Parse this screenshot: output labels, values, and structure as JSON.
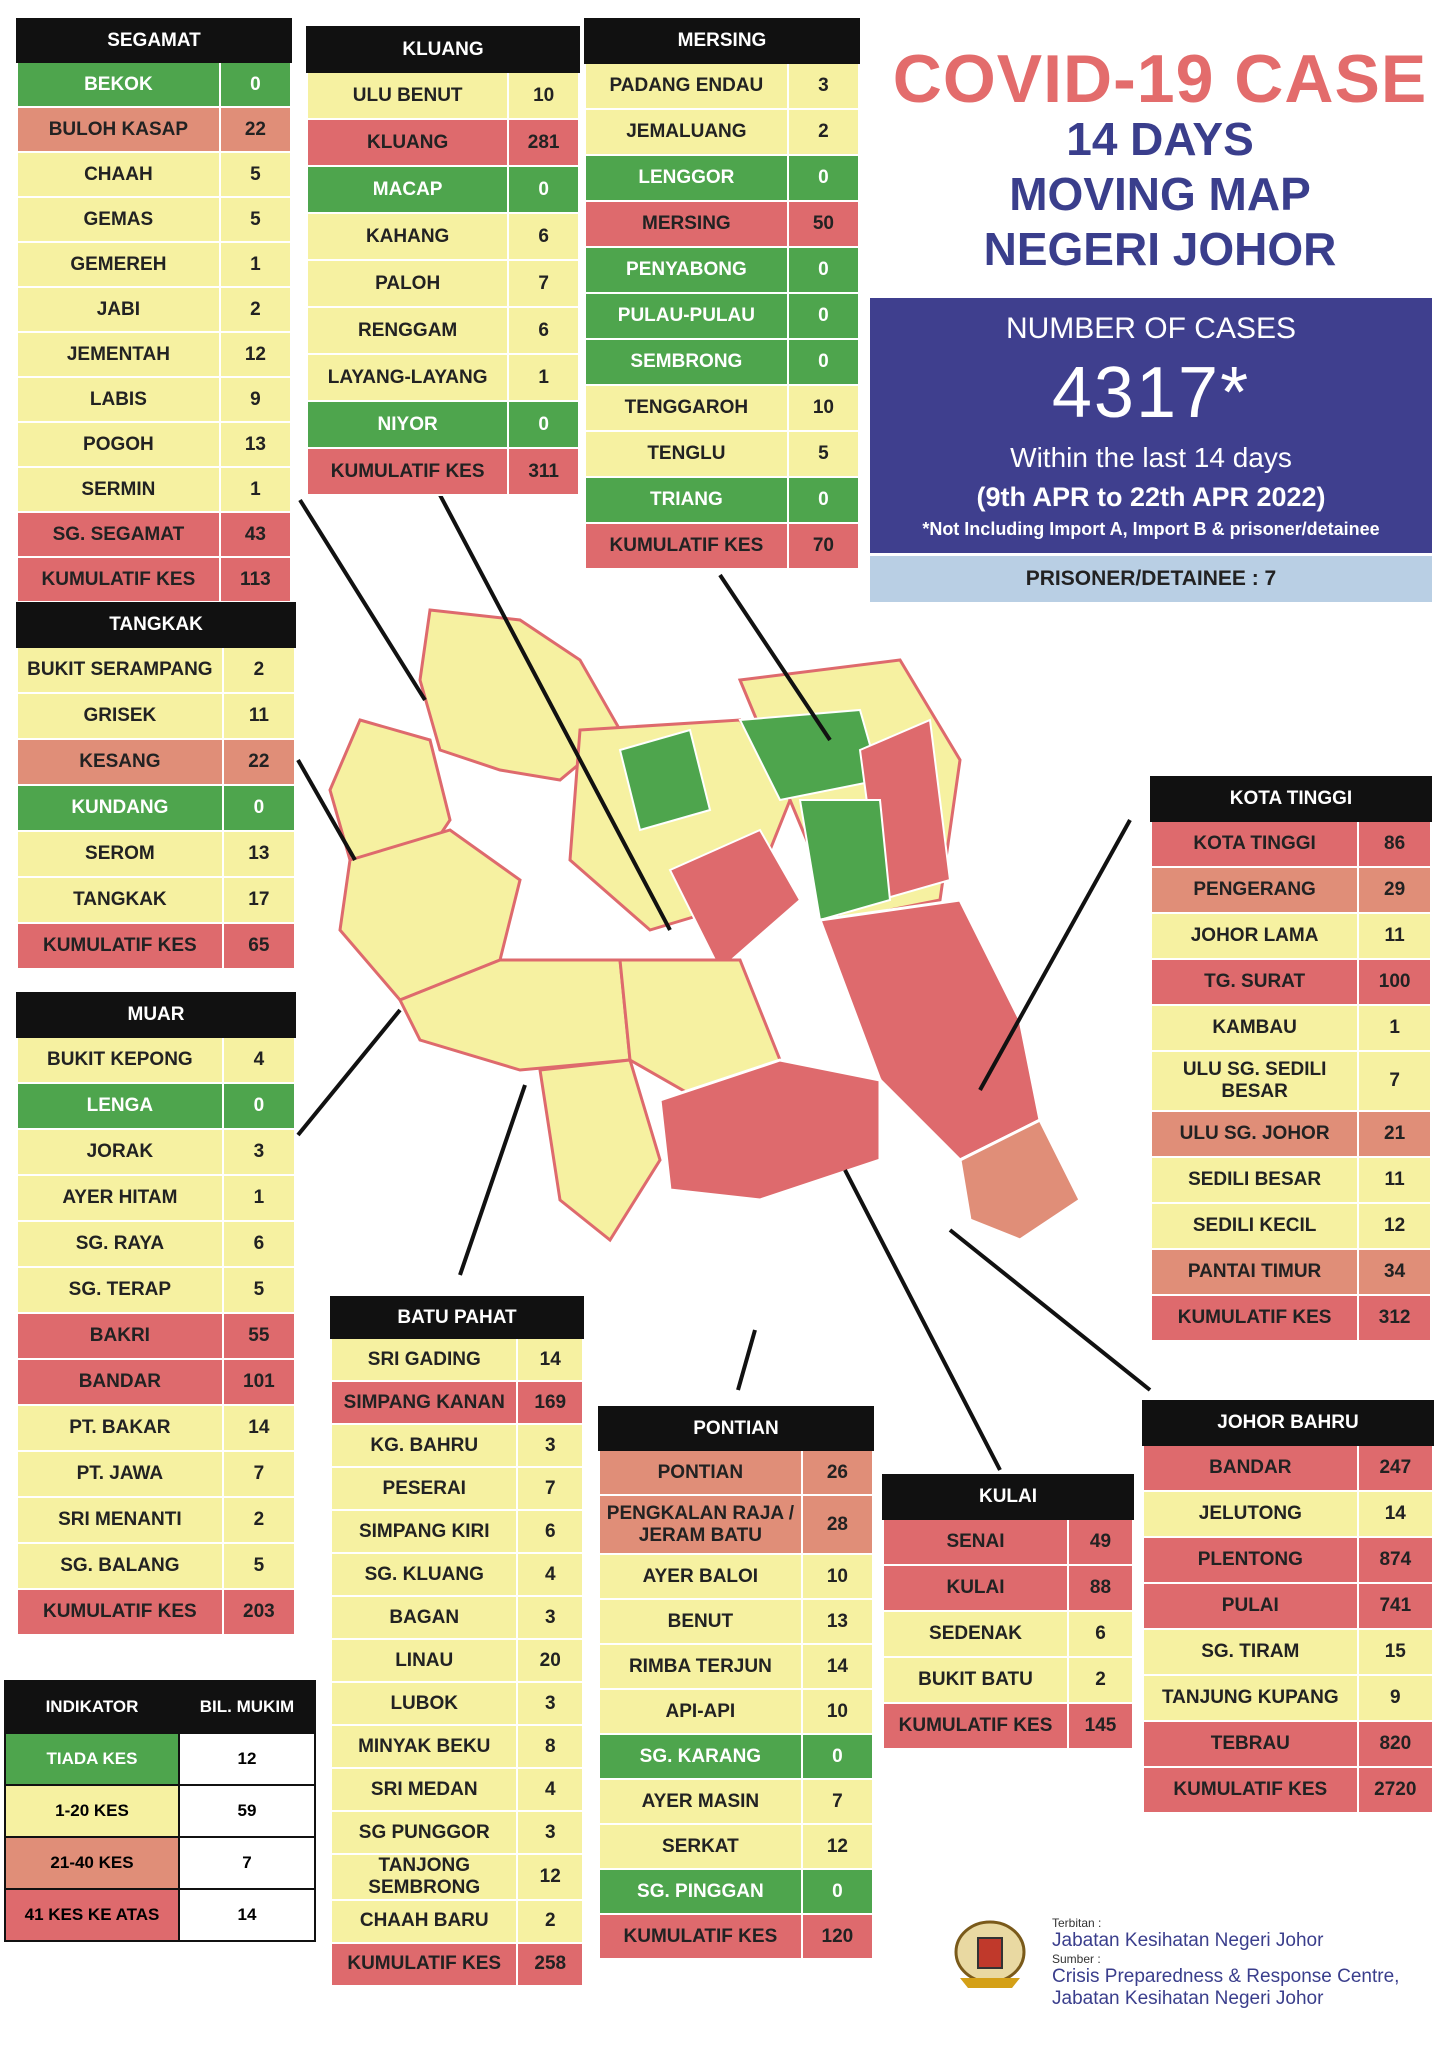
{
  "header": {
    "title": "COVID-19 CASE",
    "subtitle_lines": [
      "14 DAYS",
      "MOVING MAP",
      "NEGERI JOHOR"
    ],
    "cases_label": "NUMBER OF CASES",
    "cases_value": "4317*",
    "period_line1": "Within the last 14 days",
    "period_line2": "(9th APR to 22th APR 2022)",
    "note": "*Not Including Import A, Import B & prisoner/detainee",
    "prisoner": "PRISONER/DETAINEE : 7"
  },
  "colors": {
    "green": "#4ea54d",
    "yellow": "#f6f1a1",
    "orange": "#e08e78",
    "red": "#de6a6d",
    "title_red": "#e36c6c",
    "navy": "#3f3f8e"
  },
  "districts": {
    "segamat": {
      "title": "SEGAMAT",
      "rows": [
        {
          "n": "BEKOK",
          "v": "0",
          "c": "g"
        },
        {
          "n": "BULOH KASAP",
          "v": "22",
          "c": "o"
        },
        {
          "n": "CHAAH",
          "v": "5",
          "c": "y"
        },
        {
          "n": "GEMAS",
          "v": "5",
          "c": "y"
        },
        {
          "n": "GEMEREH",
          "v": "1",
          "c": "y"
        },
        {
          "n": "JABI",
          "v": "2",
          "c": "y"
        },
        {
          "n": "JEMENTAH",
          "v": "12",
          "c": "y"
        },
        {
          "n": "LABIS",
          "v": "9",
          "c": "y"
        },
        {
          "n": "POGOH",
          "v": "13",
          "c": "y"
        },
        {
          "n": "SERMIN",
          "v": "1",
          "c": "y"
        },
        {
          "n": "SG. SEGAMAT",
          "v": "43",
          "c": "r"
        },
        {
          "n": "KUMULATIF KES",
          "v": "113",
          "c": "r"
        }
      ]
    },
    "kluang": {
      "title": "KLUANG",
      "rows": [
        {
          "n": "ULU BENUT",
          "v": "10",
          "c": "y"
        },
        {
          "n": "KLUANG",
          "v": "281",
          "c": "r"
        },
        {
          "n": "MACAP",
          "v": "0",
          "c": "g"
        },
        {
          "n": "KAHANG",
          "v": "6",
          "c": "y"
        },
        {
          "n": "PALOH",
          "v": "7",
          "c": "y"
        },
        {
          "n": "RENGGAM",
          "v": "6",
          "c": "y"
        },
        {
          "n": "LAYANG-LAYANG",
          "v": "1",
          "c": "y"
        },
        {
          "n": "NIYOR",
          "v": "0",
          "c": "g"
        },
        {
          "n": "KUMULATIF KES",
          "v": "311",
          "c": "r"
        }
      ]
    },
    "mersing": {
      "title": "MERSING",
      "rows": [
        {
          "n": "PADANG ENDAU",
          "v": "3",
          "c": "y"
        },
        {
          "n": "JEMALUANG",
          "v": "2",
          "c": "y"
        },
        {
          "n": "LENGGOR",
          "v": "0",
          "c": "g"
        },
        {
          "n": "MERSING",
          "v": "50",
          "c": "r"
        },
        {
          "n": "PENYABONG",
          "v": "0",
          "c": "g"
        },
        {
          "n": "PULAU-PULAU",
          "v": "0",
          "c": "g"
        },
        {
          "n": "SEMBRONG",
          "v": "0",
          "c": "g"
        },
        {
          "n": "TENGGAROH",
          "v": "10",
          "c": "y"
        },
        {
          "n": "TENGLU",
          "v": "5",
          "c": "y"
        },
        {
          "n": "TRIANG",
          "v": "0",
          "c": "g"
        },
        {
          "n": "KUMULATIF KES",
          "v": "70",
          "c": "r"
        }
      ]
    },
    "tangkak": {
      "title": "TANGKAK",
      "rows": [
        {
          "n": "BUKIT SERAMPANG",
          "v": "2",
          "c": "y"
        },
        {
          "n": "GRISEK",
          "v": "11",
          "c": "y"
        },
        {
          "n": "KESANG",
          "v": "22",
          "c": "o"
        },
        {
          "n": "KUNDANG",
          "v": "0",
          "c": "g"
        },
        {
          "n": "SEROM",
          "v": "13",
          "c": "y"
        },
        {
          "n": "TANGKAK",
          "v": "17",
          "c": "y"
        },
        {
          "n": "KUMULATIF KES",
          "v": "65",
          "c": "r"
        }
      ]
    },
    "muar": {
      "title": "MUAR",
      "rows": [
        {
          "n": "BUKIT KEPONG",
          "v": "4",
          "c": "y"
        },
        {
          "n": "LENGA",
          "v": "0",
          "c": "g"
        },
        {
          "n": "JORAK",
          "v": "3",
          "c": "y"
        },
        {
          "n": "AYER HITAM",
          "v": "1",
          "c": "y"
        },
        {
          "n": "SG. RAYA",
          "v": "6",
          "c": "y"
        },
        {
          "n": "SG. TERAP",
          "v": "5",
          "c": "y"
        },
        {
          "n": "BAKRI",
          "v": "55",
          "c": "r"
        },
        {
          "n": "BANDAR",
          "v": "101",
          "c": "r"
        },
        {
          "n": "PT. BAKAR",
          "v": "14",
          "c": "y"
        },
        {
          "n": "PT. JAWA",
          "v": "7",
          "c": "y"
        },
        {
          "n": "SRI MENANTI",
          "v": "2",
          "c": "y"
        },
        {
          "n": "SG. BALANG",
          "v": "5",
          "c": "y"
        },
        {
          "n": "KUMULATIF KES",
          "v": "203",
          "c": "r"
        }
      ]
    },
    "batu_pahat": {
      "title": "BATU PAHAT",
      "rows": [
        {
          "n": "SRI GADING",
          "v": "14",
          "c": "y"
        },
        {
          "n": "SIMPANG KANAN",
          "v": "169",
          "c": "r"
        },
        {
          "n": "KG. BAHRU",
          "v": "3",
          "c": "y"
        },
        {
          "n": "PESERAI",
          "v": "7",
          "c": "y"
        },
        {
          "n": "SIMPANG KIRI",
          "v": "6",
          "c": "y"
        },
        {
          "n": "SG. KLUANG",
          "v": "4",
          "c": "y"
        },
        {
          "n": "BAGAN",
          "v": "3",
          "c": "y"
        },
        {
          "n": "LINAU",
          "v": "20",
          "c": "y"
        },
        {
          "n": "LUBOK",
          "v": "3",
          "c": "y"
        },
        {
          "n": "MINYAK BEKU",
          "v": "8",
          "c": "y"
        },
        {
          "n": "SRI MEDAN",
          "v": "4",
          "c": "y"
        },
        {
          "n": "SG PUNGGOR",
          "v": "3",
          "c": "y"
        },
        {
          "n": "TANJONG SEMBRONG",
          "v": "12",
          "c": "y"
        },
        {
          "n": "CHAAH BARU",
          "v": "2",
          "c": "y"
        },
        {
          "n": "KUMULATIF KES",
          "v": "258",
          "c": "r"
        }
      ]
    },
    "pontian": {
      "title": "PONTIAN",
      "rows": [
        {
          "n": "PONTIAN",
          "v": "26",
          "c": "o"
        },
        {
          "n": "PENGKALAN RAJA / JERAM BATU",
          "v": "28",
          "c": "o"
        },
        {
          "n": "AYER BALOI",
          "v": "10",
          "c": "y"
        },
        {
          "n": "BENUT",
          "v": "13",
          "c": "y"
        },
        {
          "n": "RIMBA TERJUN",
          "v": "14",
          "c": "y"
        },
        {
          "n": "API-API",
          "v": "10",
          "c": "y"
        },
        {
          "n": "SG. KARANG",
          "v": "0",
          "c": "g"
        },
        {
          "n": "AYER MASIN",
          "v": "7",
          "c": "y"
        },
        {
          "n": "SERKAT",
          "v": "12",
          "c": "y"
        },
        {
          "n": "SG. PINGGAN",
          "v": "0",
          "c": "g"
        },
        {
          "n": "KUMULATIF KES",
          "v": "120",
          "c": "r"
        }
      ]
    },
    "kulai": {
      "title": "KULAI",
      "rows": [
        {
          "n": "SENAI",
          "v": "49",
          "c": "r"
        },
        {
          "n": "KULAI",
          "v": "88",
          "c": "r"
        },
        {
          "n": "SEDENAK",
          "v": "6",
          "c": "y"
        },
        {
          "n": "BUKIT BATU",
          "v": "2",
          "c": "y"
        },
        {
          "n": "KUMULATIF KES",
          "v": "145",
          "c": "r"
        }
      ]
    },
    "kota_tinggi": {
      "title": "KOTA TINGGI",
      "rows": [
        {
          "n": "KOTA TINGGI",
          "v": "86",
          "c": "r"
        },
        {
          "n": "PENGERANG",
          "v": "29",
          "c": "o"
        },
        {
          "n": "JOHOR LAMA",
          "v": "11",
          "c": "y"
        },
        {
          "n": "TG. SURAT",
          "v": "100",
          "c": "r"
        },
        {
          "n": "KAMBAU",
          "v": "1",
          "c": "y"
        },
        {
          "n": "ULU SG. SEDILI BESAR",
          "v": "7",
          "c": "y"
        },
        {
          "n": "ULU SG. JOHOR",
          "v": "21",
          "c": "o"
        },
        {
          "n": "SEDILI BESAR",
          "v": "11",
          "c": "y"
        },
        {
          "n": "SEDILI KECIL",
          "v": "12",
          "c": "y"
        },
        {
          "n": "PANTAI TIMUR",
          "v": "34",
          "c": "o"
        },
        {
          "n": "KUMULATIF KES",
          "v": "312",
          "c": "r"
        }
      ]
    },
    "johor_bahru": {
      "title": "JOHOR BAHRU",
      "rows": [
        {
          "n": "BANDAR",
          "v": "247",
          "c": "r"
        },
        {
          "n": "JELUTONG",
          "v": "14",
          "c": "y"
        },
        {
          "n": "PLENTONG",
          "v": "874",
          "c": "r"
        },
        {
          "n": "PULAI",
          "v": "741",
          "c": "r"
        },
        {
          "n": "SG. TIRAM",
          "v": "15",
          "c": "y"
        },
        {
          "n": "TANJUNG KUPANG",
          "v": "9",
          "c": "y"
        },
        {
          "n": "TEBRAU",
          "v": "820",
          "c": "r"
        },
        {
          "n": "KUMULATIF KES",
          "v": "2720",
          "c": "r"
        }
      ]
    }
  },
  "legend": {
    "head1": "INDIKATOR",
    "head2": "BIL. MUKIM",
    "rows": [
      {
        "n": "TIADA KES",
        "v": "12",
        "c": "g"
      },
      {
        "n": "1-20 KES",
        "v": "59",
        "c": "y"
      },
      {
        "n": "21-40 KES",
        "v": "7",
        "c": "o"
      },
      {
        "n": "41 KES KE ATAS",
        "v": "14",
        "c": "r"
      }
    ]
  },
  "credit": {
    "terbitan_label": "Terbitan :",
    "terbitan": "Jabatan Kesihatan Negeri Johor",
    "sumber_label": "Sumber :",
    "sumber1": "Crisis Preparedness & Response Centre,",
    "sumber2": "Jabatan Kesihatan Negeri Johor"
  }
}
